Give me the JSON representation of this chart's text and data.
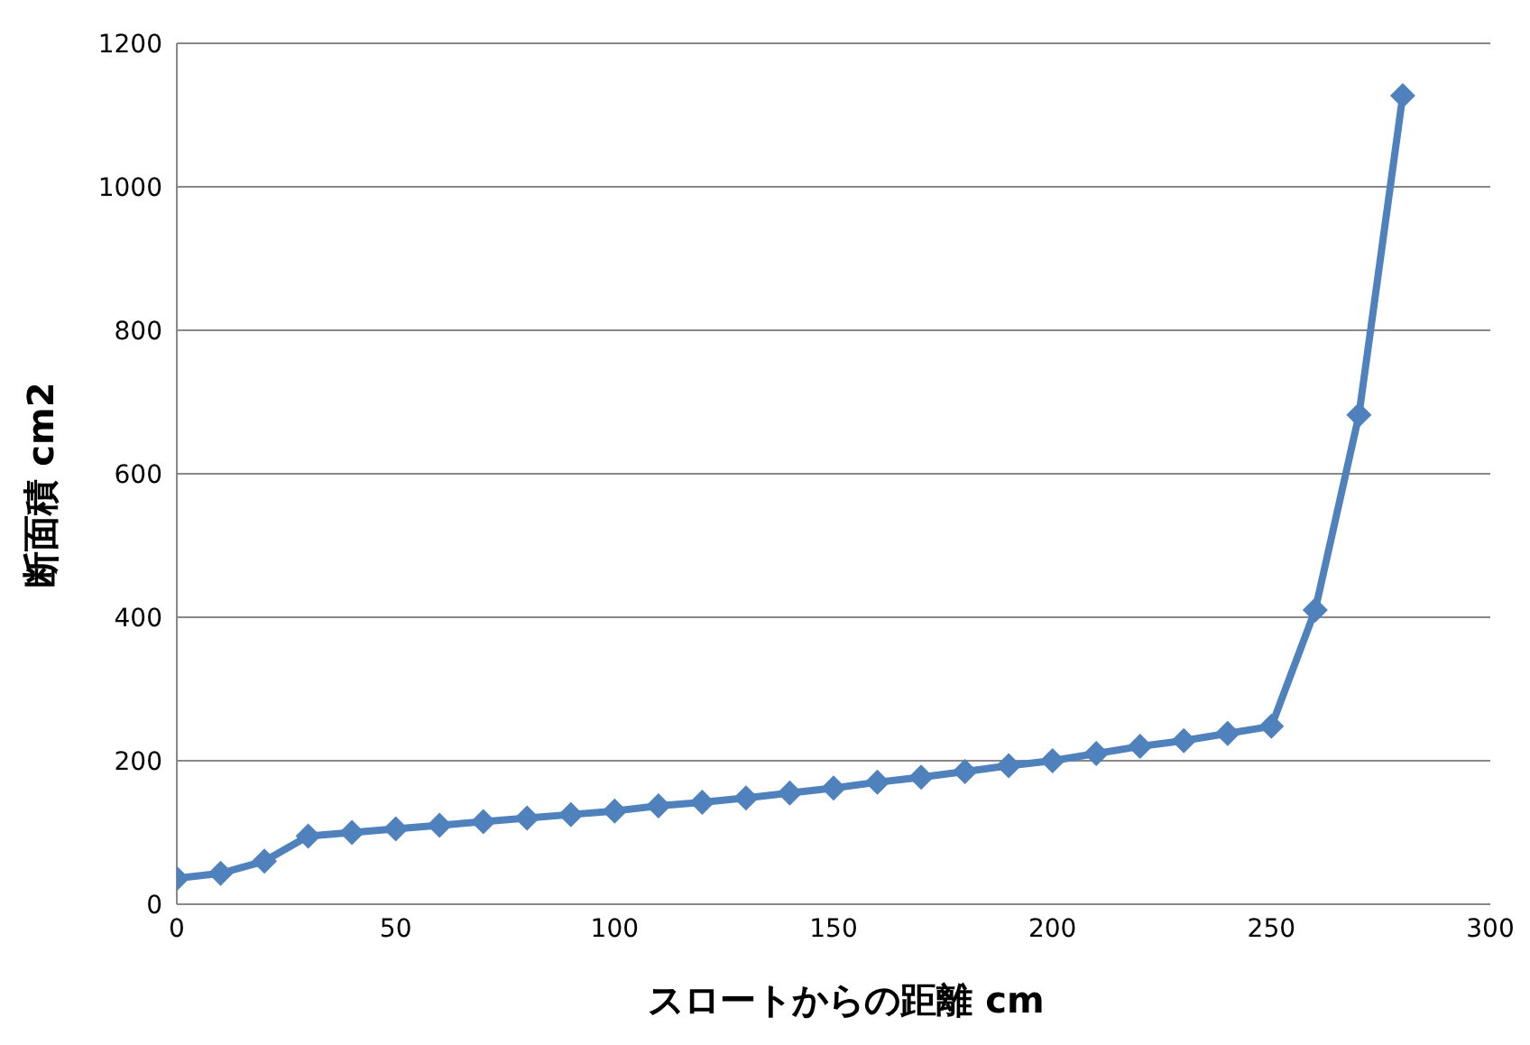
{
  "chart_data": {
    "type": "line",
    "xlabel": "スロートからの距離 cm",
    "ylabel": "断面積 cm2",
    "x": [
      0,
      10,
      20,
      30,
      40,
      50,
      60,
      70,
      80,
      90,
      100,
      110,
      120,
      130,
      140,
      150,
      160,
      170,
      180,
      190,
      200,
      210,
      220,
      230,
      240,
      250,
      260,
      270,
      280
    ],
    "series": [
      {
        "color": "#4f81bd",
        "values": [
          36,
          43,
          60,
          95,
          100,
          105,
          110,
          115,
          120,
          125,
          130,
          137,
          142,
          148,
          155,
          162,
          170,
          177,
          185,
          193,
          200,
          210,
          220,
          228,
          238,
          248,
          410,
          682,
          1127
        ]
      }
    ],
    "xlim": [
      0,
      300
    ],
    "xticks": [
      0,
      50,
      100,
      150,
      200,
      250,
      300
    ],
    "ylim": [
      0,
      1200
    ],
    "yticks": [
      0,
      200,
      400,
      600,
      800,
      1000,
      1200
    ],
    "grid": "y",
    "marker": "diamond",
    "line_style": "solid",
    "legend": false
  }
}
